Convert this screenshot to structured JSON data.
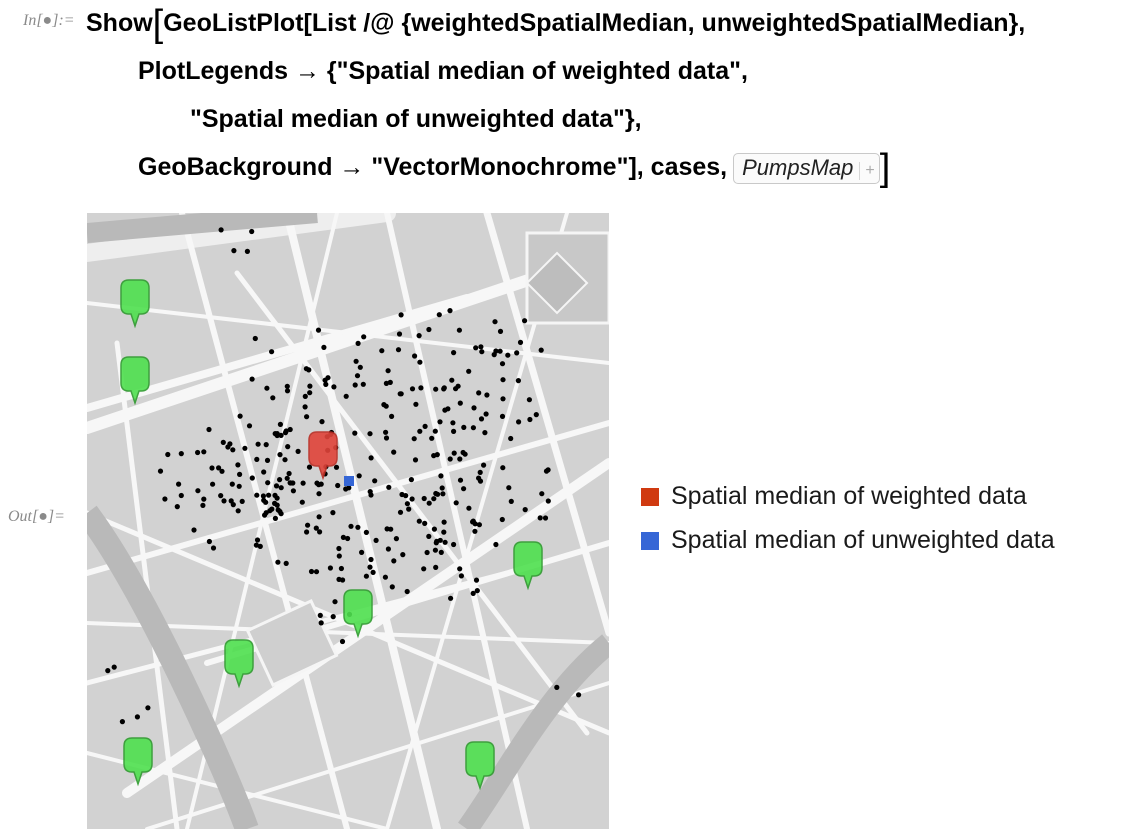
{
  "cell": {
    "in_label": "In[●]:=",
    "out_label": "Out[●]=",
    "code_lines": [
      "GeoListPlot[List /@ {weightedSpatialMedian, unweightedSpatialMedian},",
      "PlotLegends → {\"Spatial median of weighted data\",",
      "\"Spatial median of unweighted data\"},",
      "GeoBackground → \"VectorMonochrome\"], cases,"
    ],
    "show_prefix": "Show",
    "open_bracket": "[",
    "close_bracket": "]",
    "pumps_label": "PumpsMap",
    "pumps_plus": "+"
  },
  "legend": [
    {
      "label": "Spatial median of weighted data",
      "color": "#d03a10"
    },
    {
      "label": "Spatial median of unweighted data",
      "color": "#3566d6"
    }
  ],
  "map": {
    "background": "VectorMonochrome",
    "pump_icon": "pump-marker-icon",
    "pump_color": "#4fe04f",
    "weighted_marker_color": "#e0443a",
    "unweighted_marker_color": "#3566d6"
  }
}
